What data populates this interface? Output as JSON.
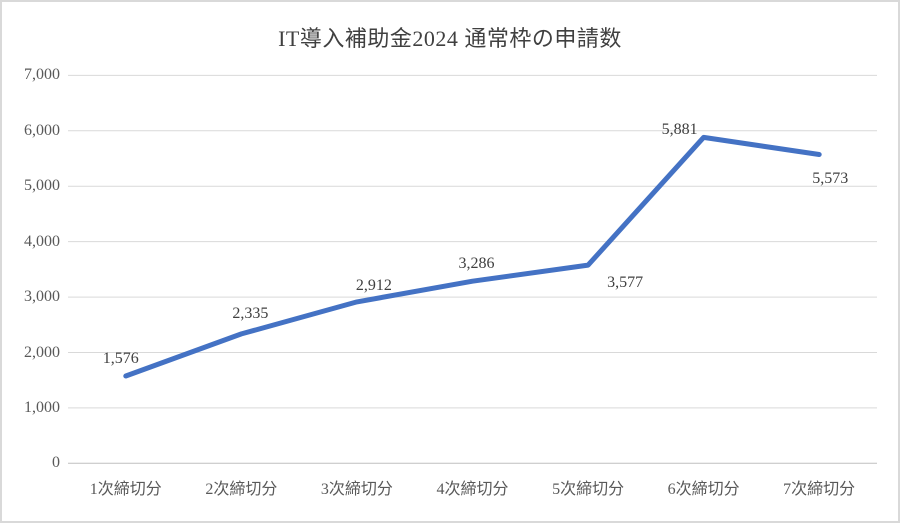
{
  "chart_data": {
    "type": "line",
    "title": "IT導入補助金2024 通常枠の申請数",
    "categories": [
      "1次締切分",
      "2次締切分",
      "3次締切分",
      "4次締切分",
      "5次締切分",
      "6次締切分",
      "7次締切分"
    ],
    "series": [
      {
        "name": "申請数",
        "values": [
          1576,
          2335,
          2912,
          3286,
          3577,
          5881,
          5573
        ],
        "value_labels": [
          "1,576",
          "2,335",
          "2,912",
          "3,286",
          "3,577",
          "5,881",
          "5,573"
        ],
        "data_label_positions": [
          "above",
          "above",
          "above",
          "above",
          "below-right",
          "above-left",
          "below-right"
        ]
      }
    ],
    "xlabel": "",
    "ylabel": "",
    "ylim": [
      0,
      7000
    ],
    "ytick_step": 1000,
    "ytick_labels": [
      "0",
      "1,000",
      "2,000",
      "3,000",
      "4,000",
      "5,000",
      "6,000",
      "7,000"
    ],
    "grid": "horizontal",
    "legend": "none",
    "colors": {
      "line": "#4472C4",
      "gridline": "#D9D9D9",
      "axis_line": "#BFBFBF",
      "tick_text": "#595959",
      "data_label_text": "#404040",
      "title_text": "#404040",
      "background": "#FFFFFF",
      "border": "#D9D9D9"
    }
  }
}
